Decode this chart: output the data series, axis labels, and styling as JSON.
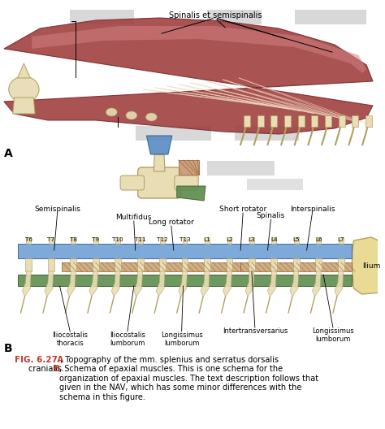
{
  "bg_color": "#ffffff",
  "fig_width": 4.74,
  "fig_height": 5.28,
  "caption_fig": "FIG. 6.27",
  "caption_bold_a": "A",
  "caption_text_a": ", Topography of the mm. splenius and serratus dorsalis cranialis.",
  "caption_bold_b": "B",
  "label_A": "A",
  "label_B": "B",
  "label_spinalis": "Spinalis et semispinalis",
  "label_short_rotator": "Short rotator",
  "label_semispinalis": "Semispinalis",
  "label_multifidus": "Multifidus",
  "label_long_rotator": "Long rotator",
  "label_spinalis_b": "Spinalis",
  "label_interspinalis": "Interspinalis",
  "label_ilium": "Ilium",
  "label_iliocostalis_t": "Iliocostalis\nthoracis",
  "label_iliocostalis_l": "Iliocostalis\nlumborum",
  "label_longissimus_l": "Longissimus\nlumborum",
  "label_intertransversarius": "Intertransversarius",
  "label_longissimus_l2": "Longissimus\nlumborum",
  "vertebrae_labels": [
    "T6",
    "T7",
    "T8",
    "T9",
    "T10",
    "T11",
    "T12",
    "T13",
    "L1",
    "L2",
    "L3",
    "L4",
    "L5",
    "L6",
    "L7"
  ],
  "color_red": "#c0392b",
  "color_blue_band": "#6b9fd4",
  "color_brown_band": "#c8a06e",
  "color_green_band": "#5a8a4a",
  "color_bone": "#e8ddb5",
  "color_muscle_dark": "#a04040",
  "color_muscle_light": "#c87070",
  "color_gray_blur": "#c8c8c8"
}
